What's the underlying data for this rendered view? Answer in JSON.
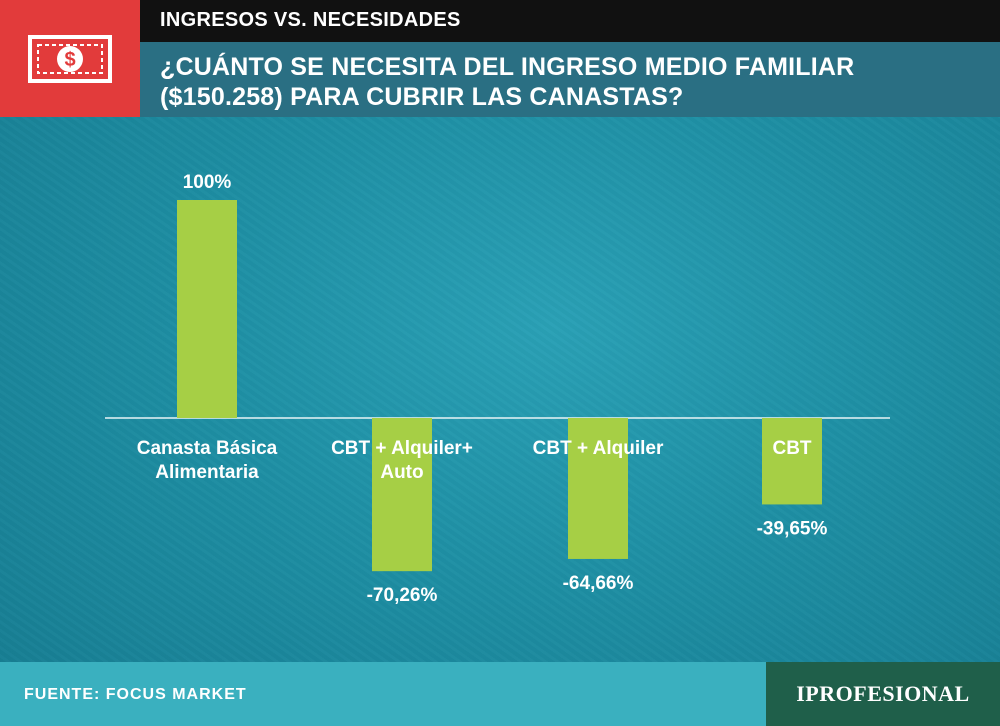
{
  "header": {
    "kicker": "INGRESOS VS. NECESIDADES",
    "title_line1": "¿CUÁNTO SE NECESITA DEL INGRESO MEDIO FAMILIAR",
    "title_line2": "($150.258) PARA CUBRIR LAS CANASTAS?",
    "logo_icon": "money-bill-icon"
  },
  "footer": {
    "source": "FUENTE: FOCUS MARKET",
    "brand": "IPROFESIONAL"
  },
  "colors": {
    "background": "#1f93a8",
    "bar": "#a6cf45",
    "accent_red": "#e23b3b"
  },
  "chart_data": {
    "type": "bar",
    "title": "¿CUÁNTO SE NECESITA DEL INGRESO MEDIO FAMILIAR ($150.258) PARA CUBRIR LAS CANASTAS?",
    "categories": [
      [
        "Canasta Básica",
        "Alimentaria"
      ],
      [
        "CBT + Alquiler+",
        "Auto"
      ],
      [
        "CBT + Alquiler"
      ],
      [
        "CBT"
      ]
    ],
    "values": [
      100,
      -70.26,
      -64.66,
      -39.65
    ],
    "value_labels": [
      "100%",
      "-70,26%",
      "-64,66%",
      "-39,65%"
    ],
    "ylim": [
      -80,
      110
    ],
    "grid": false,
    "legend": "none"
  }
}
